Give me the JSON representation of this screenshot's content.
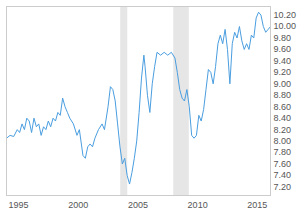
{
  "chart_data": {
    "type": "line",
    "x": [
      1994.0,
      1994.3,
      1994.6,
      1994.9,
      1995.1,
      1995.3,
      1995.5,
      1995.7,
      1995.9,
      1996.1,
      1996.3,
      1996.5,
      1996.7,
      1996.9,
      1997.1,
      1997.3,
      1997.5,
      1997.7,
      1997.9,
      1998.1,
      1998.3,
      1998.5,
      1998.7,
      1998.9,
      1999.1,
      1999.3,
      1999.6,
      1999.9,
      2000.1,
      2000.4,
      2000.6,
      2000.8,
      2001.0,
      2001.2,
      2001.4,
      2001.7,
      2002.0,
      2002.2,
      2002.5,
      2002.7,
      2002.9,
      2003.1,
      2003.3,
      2003.5,
      2003.7,
      2003.9,
      2004.1,
      2004.3,
      2004.5,
      2004.7,
      2004.9,
      2005.1,
      2005.3,
      2005.5,
      2005.6,
      2005.8,
      2006.0,
      2006.2,
      2006.4,
      2006.6,
      2006.9,
      2007.2,
      2007.5,
      2007.8,
      2008.1,
      2008.3,
      2008.5,
      2008.7,
      2008.9,
      2009.1,
      2009.3,
      2009.5,
      2009.7,
      2009.9,
      2010.1,
      2010.3,
      2010.5,
      2010.7,
      2010.9,
      2011.1,
      2011.3,
      2011.5,
      2011.7,
      2011.9,
      2012.1,
      2012.3,
      2012.5,
      2012.7,
      2012.9,
      2013.1,
      2013.3,
      2013.5,
      2013.7,
      2013.9,
      2014.1,
      2014.3,
      2014.5,
      2014.7,
      2014.9,
      2015.1,
      2015.3,
      2015.5,
      2015.7,
      2015.9,
      2016.1
    ],
    "values": [
      8.05,
      8.1,
      8.08,
      8.2,
      8.15,
      8.3,
      8.2,
      8.4,
      8.35,
      8.15,
      8.4,
      8.25,
      8.3,
      8.1,
      8.25,
      8.2,
      8.35,
      8.25,
      8.4,
      8.35,
      8.5,
      8.45,
      8.75,
      8.6,
      8.5,
      8.4,
      8.3,
      8.1,
      8.2,
      7.75,
      7.7,
      7.9,
      7.95,
      7.9,
      8.05,
      8.2,
      8.3,
      8.2,
      8.6,
      8.95,
      8.9,
      8.7,
      8.3,
      7.9,
      7.6,
      7.7,
      7.4,
      7.25,
      7.45,
      7.7,
      8.0,
      8.5,
      9.1,
      9.5,
      9.3,
      8.8,
      8.5,
      9.0,
      9.3,
      9.55,
      9.5,
      9.55,
      9.5,
      9.55,
      9.45,
      9.2,
      8.9,
      8.75,
      8.7,
      8.9,
      8.6,
      8.1,
      8.05,
      8.1,
      8.45,
      8.35,
      8.55,
      8.9,
      9.25,
      9.2,
      9.0,
      9.3,
      9.7,
      9.85,
      9.7,
      9.95,
      9.6,
      9.0,
      9.7,
      9.9,
      9.8,
      10.0,
      9.75,
      9.6,
      9.7,
      9.6,
      9.85,
      9.8,
      10.15,
      10.25,
      10.2,
      10.0,
      9.9,
      9.95,
      10.0
    ],
    "color": "#4a9ee0",
    "shaded": [
      [
        2003.56,
        2004.15
      ],
      [
        2008.0,
        2009.3
      ]
    ],
    "xlim": [
      1994.0,
      2016.1
    ],
    "xticks": [
      1995,
      2000,
      2005,
      2010,
      2015
    ],
    "ylim": [
      7.05,
      10.35
    ],
    "yticks": [
      {
        "value": 7.2,
        "label": "7.20"
      },
      {
        "value": 7.4,
        "label": "7.40"
      },
      {
        "value": 7.6,
        "label": "7.60"
      },
      {
        "value": 7.8,
        "label": "7.80"
      },
      {
        "value": 8.0,
        "label": "8.00"
      },
      {
        "value": 8.2,
        "label": "8.20"
      },
      {
        "value": 8.4,
        "label": "8.40"
      },
      {
        "value": 8.6,
        "label": "8.60"
      },
      {
        "value": 8.8,
        "label": "8.80"
      },
      {
        "value": 9.0,
        "label": "9.00"
      },
      {
        "value": 9.2,
        "label": "9.20"
      },
      {
        "value": 9.4,
        "label": "9.40"
      },
      {
        "value": 9.6,
        "label": "9.60"
      },
      {
        "value": 9.8,
        "label": "9.80"
      },
      {
        "value": 10.0,
        "label": "10.00"
      },
      {
        "value": 10.2,
        "label": "10.20"
      }
    ],
    "grid": false
  }
}
